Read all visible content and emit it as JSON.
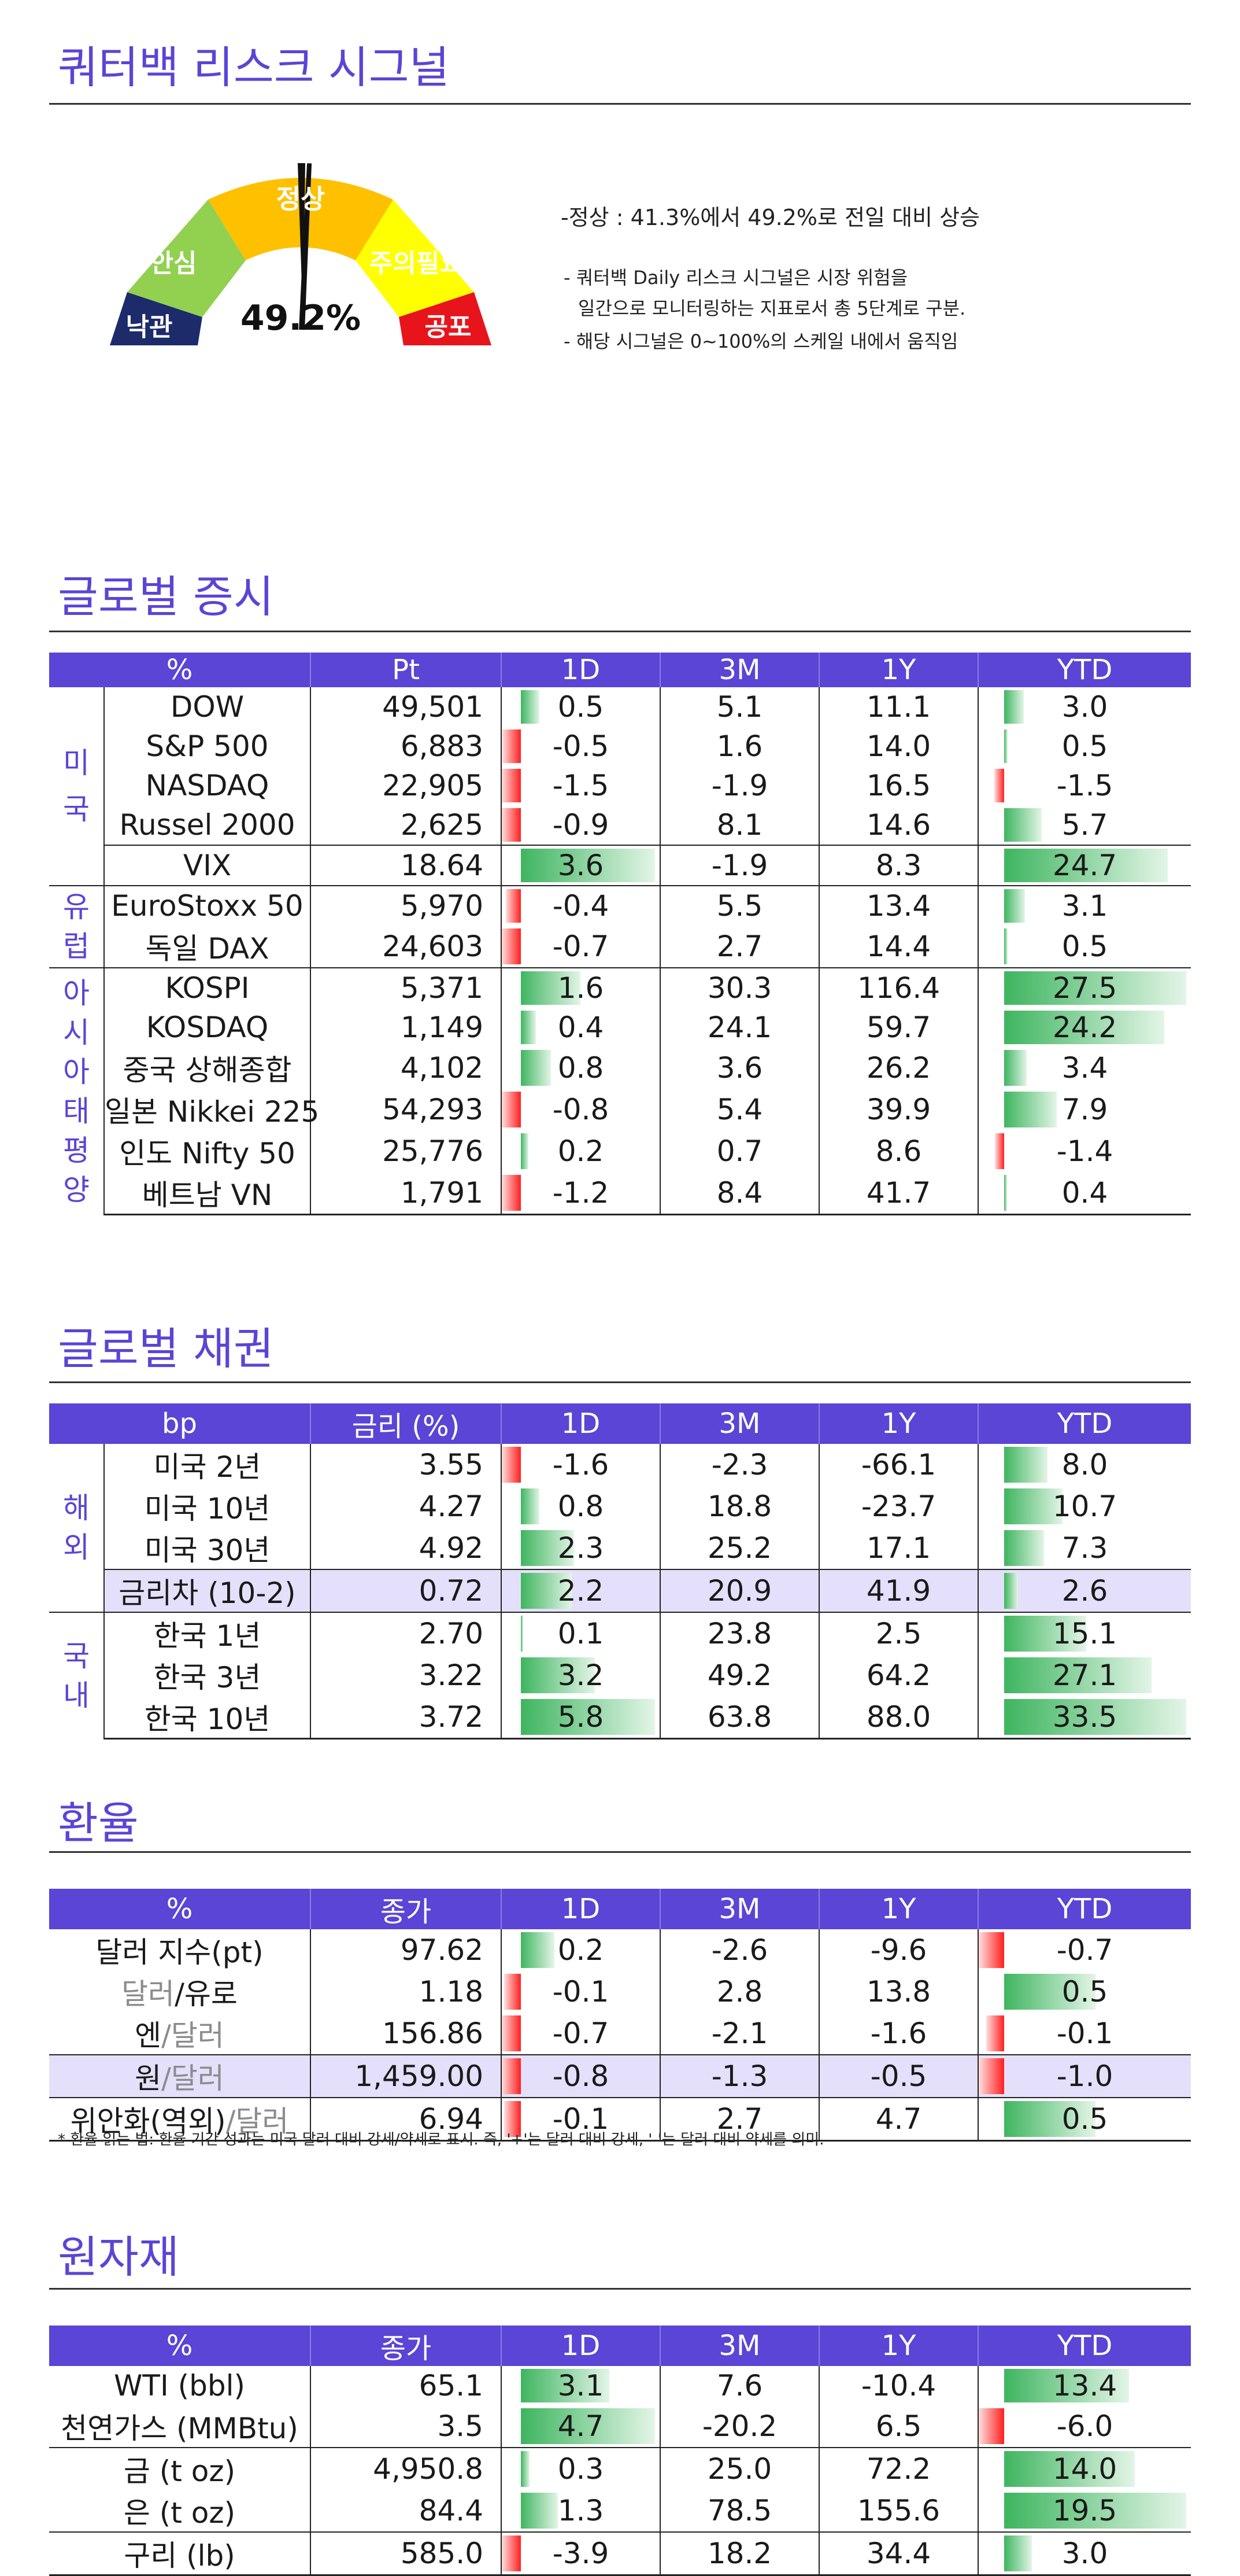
{
  "header": {
    "title": "쿼터백 리스크 시그널",
    "gauge": {
      "value": "49.2%",
      "labels": {
        "optimism": "낙관",
        "safe": "안심",
        "normal": "정상",
        "caution": "주의필요",
        "fear": "공포"
      },
      "colors": {
        "optimism": "#1d2b6b",
        "safe": "#92d050",
        "normal": "#ffc000",
        "caution": "#ffff00",
        "fear": "#e8141c"
      }
    },
    "status_line": "-정상 : 41.3%에서 49.2%로 전일 대비 상승",
    "desc1": "- 쿼터백 Daily 리스크 시그널은 시장 위험을",
    "desc2": "일간으로 모니터링하는 지표로서 총 5단계로 구분.",
    "desc3": "- 해당 시그널은 0~100%의 스케일 내에서 움직임"
  },
  "equity": {
    "title": "글로벌 증시",
    "headers": [
      "%",
      "Pt",
      "1D",
      "3M",
      "1Y",
      "YTD"
    ],
    "groups": [
      "미국",
      "유럽",
      "아시아태평양"
    ],
    "rows": [
      {
        "name": "DOW",
        "pt": "49,501",
        "d1": "0.5",
        "m3": "5.1",
        "y1": "11.1",
        "ytd": "3.0"
      },
      {
        "name": "S&P 500",
        "pt": "6,883",
        "d1": "-0.5",
        "m3": "1.6",
        "y1": "14.0",
        "ytd": "0.5"
      },
      {
        "name": "NASDAQ",
        "pt": "22,905",
        "d1": "-1.5",
        "m3": "-1.9",
        "y1": "16.5",
        "ytd": "-1.5"
      },
      {
        "name": "Russel 2000",
        "pt": "2,625",
        "d1": "-0.9",
        "m3": "8.1",
        "y1": "14.6",
        "ytd": "5.7"
      },
      {
        "name": "VIX",
        "pt": "18.64",
        "d1": "3.6",
        "m3": "-1.9",
        "y1": "8.3",
        "ytd": "24.7"
      },
      {
        "name": "EuroStoxx 50",
        "pt": "5,970",
        "d1": "-0.4",
        "m3": "5.5",
        "y1": "13.4",
        "ytd": "3.1"
      },
      {
        "name": "독일 DAX",
        "pt": "24,603",
        "d1": "-0.7",
        "m3": "2.7",
        "y1": "14.4",
        "ytd": "0.5"
      },
      {
        "name": "KOSPI",
        "pt": "5,371",
        "d1": "1.6",
        "m3": "30.3",
        "y1": "116.4",
        "ytd": "27.5"
      },
      {
        "name": "KOSDAQ",
        "pt": "1,149",
        "d1": "0.4",
        "m3": "24.1",
        "y1": "59.7",
        "ytd": "24.2"
      },
      {
        "name": "중국 상해종합",
        "pt": "4,102",
        "d1": "0.8",
        "m3": "3.6",
        "y1": "26.2",
        "ytd": "3.4"
      },
      {
        "name": "일본 Nikkei 225",
        "pt": "54,293",
        "d1": "-0.8",
        "m3": "5.4",
        "y1": "39.9",
        "ytd": "7.9"
      },
      {
        "name": "인도 Nifty 50",
        "pt": "25,776",
        "d1": "0.2",
        "m3": "0.7",
        "y1": "8.6",
        "ytd": "-1.4"
      },
      {
        "name": "베트남 VN",
        "pt": "1,791",
        "d1": "-1.2",
        "m3": "8.4",
        "y1": "41.7",
        "ytd": "0.4"
      }
    ]
  },
  "bonds": {
    "title": "글로벌 채권",
    "headers": [
      "bp",
      "금리 (%)",
      "1D",
      "3M",
      "1Y",
      "YTD"
    ],
    "groups": [
      "해외",
      "국내"
    ],
    "rows": [
      {
        "name": "미국 2년",
        "pt": "3.55",
        "d1": "-1.6",
        "m3": "-2.3",
        "y1": "-66.1",
        "ytd": "8.0"
      },
      {
        "name": "미국 10년",
        "pt": "4.27",
        "d1": "0.8",
        "m3": "18.8",
        "y1": "-23.7",
        "ytd": "10.7"
      },
      {
        "name": "미국 30년",
        "pt": "4.92",
        "d1": "2.3",
        "m3": "25.2",
        "y1": "17.1",
        "ytd": "7.3"
      },
      {
        "name": "금리차 (10-2)",
        "pt": "0.72",
        "d1": "2.2",
        "m3": "20.9",
        "y1": "41.9",
        "ytd": "2.6"
      },
      {
        "name": "한국 1년",
        "pt": "2.70",
        "d1": "0.1",
        "m3": "23.8",
        "y1": "2.5",
        "ytd": "15.1"
      },
      {
        "name": "한국 3년",
        "pt": "3.22",
        "d1": "3.2",
        "m3": "49.2",
        "y1": "64.2",
        "ytd": "27.1"
      },
      {
        "name": "한국 10년",
        "pt": "3.72",
        "d1": "5.8",
        "m3": "63.8",
        "y1": "88.0",
        "ytd": "33.5"
      }
    ]
  },
  "fx": {
    "title": "환율",
    "headers": [
      "%",
      "종가",
      "1D",
      "3M",
      "1Y",
      "YTD"
    ],
    "rows": [
      {
        "a": "달러 지수(pt)",
        "b": "",
        "pt": "97.62",
        "d1": "0.2",
        "m3": "-2.6",
        "y1": "-9.6",
        "ytd": "-0.7"
      },
      {
        "a": "달러",
        "b": "/유로",
        "pt": "1.18",
        "d1": "-0.1",
        "m3": "2.8",
        "y1": "13.8",
        "ytd": "0.5"
      },
      {
        "a": "엔",
        "b": "/달러",
        "pt": "156.86",
        "d1": "-0.7",
        "m3": "-2.1",
        "y1": "-1.6",
        "ytd": "-0.1"
      },
      {
        "a": "원",
        "b": "/달러",
        "pt": "1,459.00",
        "d1": "-0.8",
        "m3": "-1.3",
        "y1": "-0.5",
        "ytd": "-1.0"
      },
      {
        "a": "위안화(역외)",
        "b": "/달러",
        "pt": "6.94",
        "d1": "-0.1",
        "m3": "2.7",
        "y1": "4.7",
        "ytd": "0.5"
      }
    ],
    "note": "* 환율 읽는 법: 환율 기간 성과는 미국 달러 대비 강세/약세로 표시. 즉, '+'는 달러 대비 강세, '-'는 달러 대비 약세를 의미."
  },
  "commodities": {
    "title": "원자재",
    "headers": [
      "%",
      "종가",
      "1D",
      "3M",
      "1Y",
      "YTD"
    ],
    "rows": [
      {
        "name": "WTI (bbl)",
        "pt": "65.1",
        "d1": "3.1",
        "m3": "7.6",
        "y1": "-10.4",
        "ytd": "13.4"
      },
      {
        "name": "천연가스 (MMBtu)",
        "pt": "3.5",
        "d1": "4.7",
        "m3": "-20.2",
        "y1": "6.5",
        "ytd": "-6.0"
      },
      {
        "name": "금 (t oz)",
        "pt": "4,950.8",
        "d1": "0.3",
        "m3": "25.0",
        "y1": "72.2",
        "ytd": "14.0"
      },
      {
        "name": "은 (t oz)",
        "pt": "84.4",
        "d1": "1.3",
        "m3": "78.5",
        "y1": "155.6",
        "ytd": "19.5"
      },
      {
        "name": "구리 (lb)",
        "pt": "585.0",
        "d1": "-3.9",
        "m3": "18.2",
        "y1": "34.4",
        "ytd": "3.0"
      }
    ]
  }
}
